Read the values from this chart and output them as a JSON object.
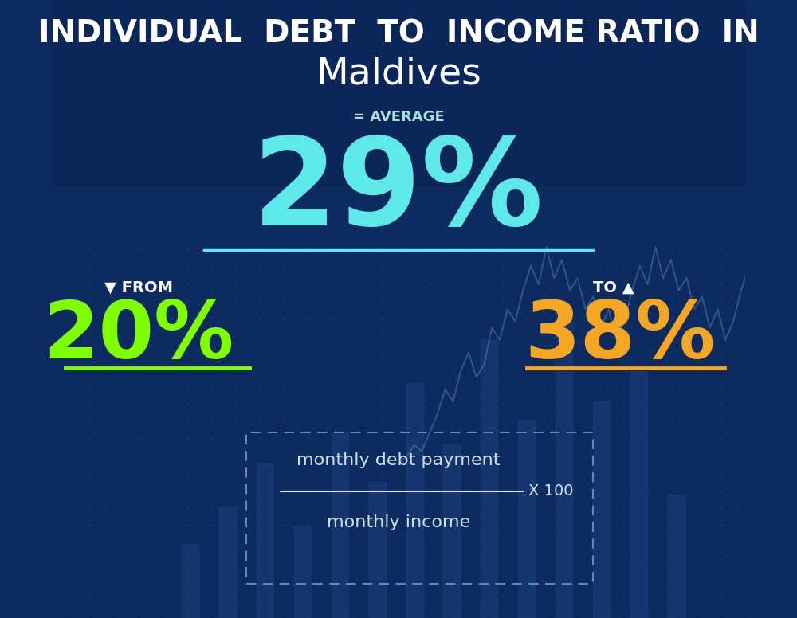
{
  "title_line1": "INDIVIDUAL  DEBT  TO  INCOME RATIO  IN",
  "title_line2": "Maldives",
  "bg_color": "#0d2b5e",
  "average_label": "= AVERAGE",
  "average_value": "29%",
  "average_color": "#5ee8e8",
  "from_value": "20%",
  "from_color": "#7fff00",
  "to_value": "38%",
  "to_color": "#f5a623",
  "formula_numerator": "monthly debt payment",
  "formula_denominator": "monthly income",
  "formula_multiplier": "X 100",
  "title_color": "#ffffff",
  "average_label_color": "#aadddd",
  "underline_avg_color": "#5ee8e8",
  "underline_from_color": "#7fff00",
  "underline_to_color": "#f5a623",
  "formula_text_color": "#cce0ee",
  "dot_color": "#1a3a6e",
  "bar_color": "#1e4080",
  "line_color": "#4a7fb5"
}
